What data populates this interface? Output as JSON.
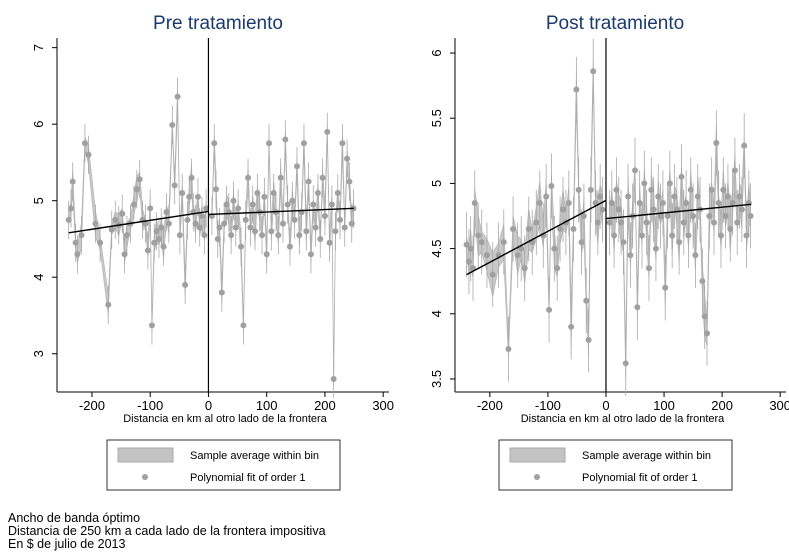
{
  "notes": [
    "Ancho de banda óptimo",
    "Distancia de 250 km a cada lado de la frontera impositiva",
    "En $ de julio de 2013"
  ],
  "colors": {
    "band": "#c4c4c4",
    "band_edge": "#a8a8a8",
    "points": "#a0a0a0",
    "fit": "#000000",
    "cutoff": "#000000"
  },
  "chart_data": [
    {
      "type": "scatter",
      "title": "Pre tratamiento",
      "xlabel": "Distancia en km al otro lado de la frontera",
      "ylabel": "",
      "xlim": [
        -260,
        310
      ],
      "ylim": [
        2.5,
        7.1
      ],
      "xticks": [
        -200,
        -100,
        0,
        100,
        200,
        300
      ],
      "yticks": [
        3,
        4,
        5,
        6,
        7
      ],
      "cutoff": 0,
      "grid": false,
      "legend": {
        "position": "bottom",
        "entries": [
          "Sample average within bin",
          "Polynomial fit of order 1"
        ]
      },
      "fit_left": {
        "x": [
          -240,
          0
        ],
        "y": [
          4.58,
          4.86
        ]
      },
      "fit_right": {
        "x": [
          0,
          250
        ],
        "y": [
          4.82,
          4.9
        ]
      },
      "points_left": [
        [
          -240,
          4.75
        ],
        [
          -236,
          4.9
        ],
        [
          -233,
          5.25
        ],
        [
          -228,
          4.45
        ],
        [
          -225,
          4.3
        ],
        [
          -218,
          4.55
        ],
        [
          -212,
          5.75
        ],
        [
          -206,
          5.6
        ],
        [
          -194,
          4.7
        ],
        [
          -186,
          4.45
        ],
        [
          -172,
          3.64
        ],
        [
          -166,
          4.62
        ],
        [
          -160,
          4.75
        ],
        [
          -154,
          4.68
        ],
        [
          -148,
          4.83
        ],
        [
          -144,
          4.3
        ],
        [
          -140,
          4.55
        ],
        [
          -134,
          4.7
        ],
        [
          -128,
          4.95
        ],
        [
          -123,
          5.15
        ],
        [
          -118,
          5.28
        ],
        [
          -113,
          4.75
        ],
        [
          -108,
          4.7
        ],
        [
          -104,
          4.35
        ],
        [
          -100,
          4.9
        ],
        [
          -97,
          3.37
        ],
        [
          -93,
          4.45
        ],
        [
          -89,
          4.6
        ],
        [
          -85,
          4.5
        ],
        [
          -81,
          4.65
        ],
        [
          -77,
          4.4
        ],
        [
          -72,
          4.85
        ],
        [
          -68,
          4.7
        ],
        [
          -62,
          5.99
        ],
        [
          -58,
          5.2
        ],
        [
          -53,
          6.36
        ],
        [
          -49,
          4.55
        ],
        [
          -45,
          5.1
        ],
        [
          -40,
          3.9
        ],
        [
          -36,
          4.75
        ],
        [
          -33,
          5.05
        ],
        [
          -29,
          5.3
        ],
        [
          -26,
          4.85
        ],
        [
          -22,
          4.7
        ],
        [
          -18,
          5.05
        ],
        [
          -15,
          4.65
        ],
        [
          -11,
          4.8
        ],
        [
          -7,
          4.55
        ],
        [
          -4,
          4.9
        ]
      ],
      "points_right": [
        [
          6,
          4.8
        ],
        [
          10,
          5.75
        ],
        [
          13,
          5.15
        ],
        [
          16,
          4.5
        ],
        [
          19,
          4.65
        ],
        [
          23,
          3.8
        ],
        [
          27,
          4.7
        ],
        [
          31,
          4.95
        ],
        [
          35,
          4.85
        ],
        [
          39,
          4.55
        ],
        [
          43,
          5.0
        ],
        [
          47,
          4.65
        ],
        [
          51,
          4.9
        ],
        [
          56,
          4.4
        ],
        [
          60,
          3.37
        ],
        [
          64,
          4.75
        ],
        [
          68,
          5.3
        ],
        [
          72,
          4.65
        ],
        [
          76,
          4.95
        ],
        [
          80,
          4.6
        ],
        [
          84,
          5.1
        ],
        [
          88,
          4.85
        ],
        [
          92,
          4.55
        ],
        [
          96,
          5.05
        ],
        [
          100,
          4.3
        ],
        [
          104,
          5.75
        ],
        [
          108,
          4.6
        ],
        [
          112,
          5.1
        ],
        [
          116,
          4.85
        ],
        [
          120,
          4.55
        ],
        [
          124,
          5.3
        ],
        [
          128,
          4.7
        ],
        [
          132,
          5.8
        ],
        [
          136,
          4.95
        ],
        [
          140,
          4.4
        ],
        [
          144,
          5.0
        ],
        [
          148,
          4.75
        ],
        [
          152,
          5.45
        ],
        [
          156,
          4.55
        ],
        [
          160,
          4.85
        ],
        [
          164,
          5.75
        ],
        [
          168,
          4.6
        ],
        [
          172,
          5.25
        ],
        [
          176,
          4.3
        ],
        [
          180,
          4.95
        ],
        [
          184,
          4.65
        ],
        [
          188,
          5.1
        ],
        [
          192,
          4.5
        ],
        [
          196,
          5.3
        ],
        [
          200,
          4.8
        ],
        [
          204,
          5.9
        ],
        [
          208,
          4.45
        ],
        [
          212,
          4.95
        ],
        [
          215,
          2.67
        ],
        [
          218,
          4.6
        ],
        [
          222,
          5.1
        ],
        [
          226,
          4.75
        ],
        [
          230,
          5.75
        ],
        [
          234,
          4.65
        ],
        [
          238,
          5.55
        ],
        [
          242,
          5.25
        ],
        [
          246,
          4.7
        ],
        [
          249,
          4.9
        ]
      ]
    },
    {
      "type": "scatter",
      "title": "Post tratamiento",
      "xlabel": "Distancia en km al otro lado de la frontera",
      "ylabel": "",
      "xlim": [
        -260,
        310
      ],
      "ylim": [
        3.4,
        6.1
      ],
      "xticks": [
        -200,
        -100,
        0,
        100,
        200,
        300
      ],
      "yticks": [
        3.5,
        4,
        4.5,
        5,
        5.5,
        6
      ],
      "cutoff": 0,
      "grid": false,
      "legend": {
        "position": "bottom",
        "entries": [
          "Sample average within bin",
          "Polynomial fit of order 1"
        ]
      },
      "fit_left": {
        "x": [
          -240,
          0
        ],
        "y": [
          4.3,
          4.87
        ]
      },
      "fit_right": {
        "x": [
          0,
          250
        ],
        "y": [
          4.73,
          4.84
        ]
      },
      "points_left": [
        [
          -240,
          4.53
        ],
        [
          -236,
          4.4
        ],
        [
          -233,
          4.5
        ],
        [
          -229,
          4.35
        ],
        [
          -226,
          4.85
        ],
        [
          -220,
          4.6
        ],
        [
          -214,
          4.55
        ],
        [
          -205,
          4.45
        ],
        [
          -195,
          4.3
        ],
        [
          -185,
          4.45
        ],
        [
          -176,
          4.55
        ],
        [
          -168,
          3.73
        ],
        [
          -160,
          4.65
        ],
        [
          -152,
          4.45
        ],
        [
          -146,
          4.5
        ],
        [
          -140,
          4.35
        ],
        [
          -133,
          4.65
        ],
        [
          -127,
          4.55
        ],
        [
          -120,
          4.7
        ],
        [
          -114,
          4.85
        ],
        [
          -108,
          4.6
        ],
        [
          -103,
          4.9
        ],
        [
          -98,
          4.03
        ],
        [
          -94,
          4.98
        ],
        [
          -89,
          4.5
        ],
        [
          -84,
          4.35
        ],
        [
          -79,
          4.65
        ],
        [
          -74,
          4.8
        ],
        [
          -69,
          4.7
        ],
        [
          -64,
          4.85
        ],
        [
          -60,
          3.9
        ],
        [
          -56,
          4.65
        ],
        [
          -51,
          5.72
        ],
        [
          -47,
          4.95
        ],
        [
          -42,
          4.55
        ],
        [
          -38,
          4.75
        ],
        [
          -34,
          4.1
        ],
        [
          -30,
          3.8
        ],
        [
          -26,
          4.95
        ],
        [
          -22,
          5.86
        ],
        [
          -18,
          4.85
        ],
        [
          -14,
          4.7
        ],
        [
          -10,
          4.9
        ],
        [
          -6,
          4.8
        ]
      ],
      "points_right": [
        [
          6,
          4.7
        ],
        [
          10,
          4.85
        ],
        [
          14,
          4.6
        ],
        [
          18,
          4.95
        ],
        [
          22,
          4.8
        ],
        [
          26,
          4.7
        ],
        [
          30,
          4.55
        ],
        [
          34,
          3.62
        ],
        [
          38,
          4.9
        ],
        [
          42,
          4.45
        ],
        [
          46,
          4.75
        ],
        [
          50,
          5.1
        ],
        [
          54,
          4.05
        ],
        [
          58,
          4.85
        ],
        [
          62,
          4.6
        ],
        [
          66,
          5.0
        ],
        [
          70,
          4.7
        ],
        [
          74,
          4.35
        ],
        [
          78,
          4.95
        ],
        [
          82,
          4.8
        ],
        [
          86,
          4.5
        ],
        [
          90,
          4.9
        ],
        [
          94,
          4.75
        ],
        [
          98,
          4.85
        ],
        [
          102,
          4.2
        ],
        [
          106,
          4.75
        ],
        [
          110,
          5.0
        ],
        [
          114,
          4.6
        ],
        [
          118,
          4.9
        ],
        [
          122,
          4.8
        ],
        [
          126,
          4.55
        ],
        [
          130,
          5.05
        ],
        [
          134,
          4.7
        ],
        [
          138,
          4.85
        ],
        [
          142,
          4.6
        ],
        [
          146,
          4.95
        ],
        [
          150,
          4.75
        ],
        [
          154,
          4.45
        ],
        [
          158,
          4.9
        ],
        [
          162,
          4.8
        ],
        [
          166,
          4.25
        ],
        [
          170,
          3.98
        ],
        [
          174,
          3.85
        ],
        [
          178,
          4.75
        ],
        [
          182,
          4.95
        ],
        [
          186,
          4.7
        ],
        [
          190,
          5.31
        ],
        [
          194,
          4.85
        ],
        [
          198,
          4.6
        ],
        [
          202,
          4.95
        ],
        [
          206,
          4.75
        ],
        [
          210,
          4.9
        ],
        [
          214,
          4.65
        ],
        [
          218,
          4.85
        ],
        [
          222,
          5.1
        ],
        [
          226,
          4.7
        ],
        [
          230,
          4.9
        ],
        [
          234,
          4.8
        ],
        [
          238,
          5.29
        ],
        [
          242,
          4.6
        ],
        [
          246,
          4.85
        ],
        [
          249,
          4.75
        ]
      ]
    }
  ]
}
